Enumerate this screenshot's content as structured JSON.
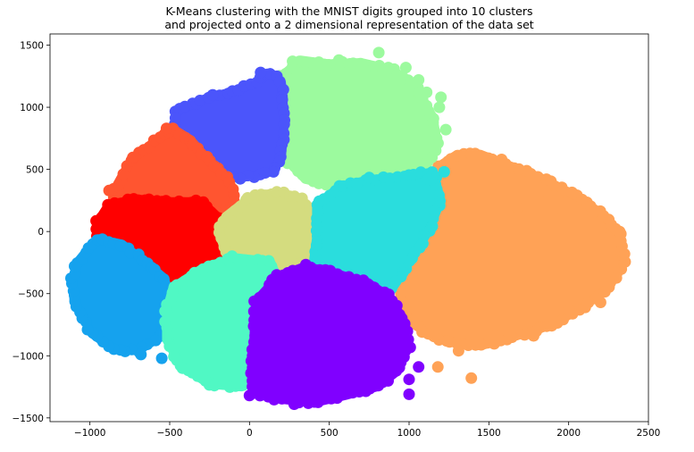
{
  "chart_data": {
    "type": "scatter",
    "title": "K-Means clustering with the MNIST digits grouped into 10 clusters\nand projected onto a 2 dimensional representation of the data set",
    "title_lines": [
      "K-Means clustering with the MNIST digits grouped into 10 clusters",
      "and projected onto a 2 dimensional representation of the data set"
    ],
    "xlabel": "",
    "ylabel": "",
    "xlim": [
      -1250,
      2500
    ],
    "ylim": [
      -1530,
      1590
    ],
    "xticks": [
      -1000,
      -500,
      0,
      500,
      1000,
      1500,
      2000,
      2500
    ],
    "yticks": [
      -1500,
      -1000,
      -500,
      0,
      500,
      1000,
      1500
    ],
    "xtick_labels": [
      "−1000",
      "−500",
      "0",
      "500",
      "1000",
      "1500",
      "2000",
      "2500"
    ],
    "ytick_labels": [
      "−1500",
      "−1000",
      "−500",
      "0",
      "500",
      "1000",
      "1500"
    ],
    "grid": false,
    "legend": "none",
    "clusters": [
      {
        "color": "#ffa256",
        "center": [
          1800,
          -250
        ],
        "polygon": [
          [
            1180,
            520
          ],
          [
            1300,
            620
          ],
          [
            1450,
            620
          ],
          [
            1650,
            520
          ],
          [
            1850,
            420
          ],
          [
            2050,
            280
          ],
          [
            2200,
            150
          ],
          [
            2320,
            -20
          ],
          [
            2350,
            -250
          ],
          [
            2250,
            -450
          ],
          [
            2100,
            -600
          ],
          [
            1900,
            -750
          ],
          [
            1650,
            -850
          ],
          [
            1450,
            -920
          ],
          [
            1300,
            -900
          ],
          [
            1150,
            -850
          ],
          [
            1000,
            -720
          ],
          [
            940,
            -500
          ],
          [
            960,
            -300
          ],
          [
            1050,
            -50
          ],
          [
            1100,
            250
          ]
        ],
        "outliers": [
          [
            1390,
            620
          ],
          [
            1580,
            580
          ],
          [
            1820,
            250
          ],
          [
            2150,
            150
          ],
          [
            2320,
            0
          ],
          [
            2350,
            -180
          ],
          [
            2200,
            -570
          ],
          [
            2000,
            -630
          ],
          [
            1780,
            -840
          ],
          [
            1540,
            -840
          ],
          [
            1310,
            -960
          ],
          [
            1180,
            -1090
          ],
          [
            1390,
            -1180
          ],
          [
            1680,
            190
          ],
          [
            1900,
            120
          ],
          [
            2250,
            -50
          ]
        ]
      },
      {
        "color": "#9cfa9e",
        "center": [
          620,
          900
        ],
        "polygon": [
          [
            200,
            1250
          ],
          [
            320,
            1380
          ],
          [
            500,
            1350
          ],
          [
            700,
            1360
          ],
          [
            900,
            1300
          ],
          [
            1050,
            1150
          ],
          [
            1150,
            920
          ],
          [
            1180,
            700
          ],
          [
            1100,
            500
          ],
          [
            950,
            380
          ],
          [
            750,
            350
          ],
          [
            550,
            360
          ],
          [
            350,
            420
          ],
          [
            200,
            620
          ],
          [
            150,
            900
          ]
        ],
        "outliers": [
          [
            810,
            1440
          ],
          [
            870,
            1320
          ],
          [
            980,
            1320
          ],
          [
            1010,
            1200
          ],
          [
            1110,
            1120
          ],
          [
            1200,
            1080
          ],
          [
            1230,
            820
          ],
          [
            560,
            1380
          ],
          [
            270,
            1370
          ],
          [
            1060,
            1220
          ],
          [
            1190,
            1000
          ]
        ]
      },
      {
        "color": "#4b55fb",
        "center": [
          -150,
          920
        ],
        "polygon": [
          [
            -460,
            960
          ],
          [
            -300,
            1060
          ],
          [
            -100,
            1130
          ],
          [
            50,
            1200
          ],
          [
            130,
            1280
          ],
          [
            200,
            1200
          ],
          [
            220,
            900
          ],
          [
            200,
            600
          ],
          [
            140,
            480
          ],
          [
            -60,
            430
          ],
          [
            -250,
            480
          ],
          [
            -400,
            620
          ],
          [
            -480,
            800
          ]
        ],
        "outliers": [
          [
            70,
            1280
          ],
          [
            -230,
            1100
          ]
        ]
      },
      {
        "color": "#ff5530",
        "center": [
          -530,
          450
        ],
        "polygon": [
          [
            -850,
            330
          ],
          [
            -750,
            560
          ],
          [
            -600,
            720
          ],
          [
            -470,
            820
          ],
          [
            -370,
            740
          ],
          [
            -250,
            560
          ],
          [
            -120,
            400
          ],
          [
            -80,
            200
          ],
          [
            -250,
            140
          ],
          [
            -480,
            160
          ],
          [
            -700,
            190
          ],
          [
            -850,
            230
          ]
        ],
        "outliers": [
          [
            -880,
            330
          ],
          [
            -520,
            830
          ]
        ]
      },
      {
        "color": "#ff0000",
        "center": [
          -560,
          0
        ],
        "polygon": [
          [
            -950,
            80
          ],
          [
            -880,
            220
          ],
          [
            -700,
            260
          ],
          [
            -480,
            240
          ],
          [
            -300,
            240
          ],
          [
            -200,
            120
          ],
          [
            -180,
            -150
          ],
          [
            -240,
            -300
          ],
          [
            -350,
            -370
          ],
          [
            -500,
            -380
          ],
          [
            -650,
            -300
          ],
          [
            -800,
            -180
          ],
          [
            -950,
            -50
          ]
        ],
        "outliers": [
          [
            -960,
            20
          ]
        ]
      },
      {
        "color": "#d4dc7f",
        "center": [
          150,
          10
        ],
        "polygon": [
          [
            -150,
            120
          ],
          [
            0,
            270
          ],
          [
            180,
            320
          ],
          [
            330,
            260
          ],
          [
            420,
            100
          ],
          [
            420,
            -100
          ],
          [
            330,
            -260
          ],
          [
            150,
            -320
          ],
          [
            0,
            -300
          ],
          [
            -150,
            -160
          ],
          [
            -190,
            -20
          ]
        ],
        "outliers": []
      },
      {
        "color": "#2adddd",
        "center": [
          820,
          100
        ],
        "polygon": [
          [
            420,
            200
          ],
          [
            560,
            360
          ],
          [
            760,
            420
          ],
          [
            960,
            440
          ],
          [
            1150,
            480
          ],
          [
            1200,
            250
          ],
          [
            1120,
            0
          ],
          [
            1000,
            -250
          ],
          [
            900,
            -450
          ],
          [
            800,
            -580
          ],
          [
            650,
            -520
          ],
          [
            500,
            -400
          ],
          [
            400,
            -250
          ],
          [
            420,
            -50
          ]
        ],
        "outliers": [
          [
            1220,
            480
          ],
          [
            1120,
            420
          ]
        ]
      },
      {
        "color": "#15a2ee",
        "center": [
          -880,
          -500
        ],
        "polygon": [
          [
            -1080,
            -250
          ],
          [
            -960,
            -60
          ],
          [
            -800,
            -100
          ],
          [
            -640,
            -260
          ],
          [
            -530,
            -380
          ],
          [
            -500,
            -600
          ],
          [
            -560,
            -850
          ],
          [
            -700,
            -960
          ],
          [
            -850,
            -950
          ],
          [
            -990,
            -820
          ],
          [
            -1100,
            -560
          ],
          [
            -1110,
            -380
          ]
        ],
        "outliers": [
          [
            -1090,
            -280
          ],
          [
            -550,
            -1020
          ],
          [
            -680,
            -990
          ]
        ]
      },
      {
        "color": "#50f8c4",
        "center": [
          -200,
          -720
        ],
        "polygon": [
          [
            -480,
            -450
          ],
          [
            -300,
            -300
          ],
          [
            -100,
            -210
          ],
          [
            130,
            -240
          ],
          [
            200,
            -440
          ],
          [
            180,
            -760
          ],
          [
            80,
            -1050
          ],
          [
            -50,
            -1250
          ],
          [
            -250,
            -1230
          ],
          [
            -430,
            -1080
          ],
          [
            -520,
            -870
          ],
          [
            -520,
            -640
          ]
        ],
        "outliers": [
          [
            -220,
            -1240
          ],
          [
            -420,
            -1100
          ],
          [
            120,
            -720
          ]
        ]
      },
      {
        "color": "#8000ff",
        "center": [
          520,
          -820
        ],
        "polygon": [
          [
            40,
            -560
          ],
          [
            180,
            -360
          ],
          [
            350,
            -280
          ],
          [
            550,
            -340
          ],
          [
            750,
            -420
          ],
          [
            870,
            -520
          ],
          [
            960,
            -700
          ],
          [
            1000,
            -920
          ],
          [
            920,
            -1130
          ],
          [
            800,
            -1250
          ],
          [
            600,
            -1320
          ],
          [
            400,
            -1380
          ],
          [
            200,
            -1350
          ],
          [
            20,
            -1300
          ],
          [
            20,
            -1050
          ],
          [
            30,
            -800
          ]
        ],
        "outliers": [
          [
            0,
            -1320
          ],
          [
            280,
            -1390
          ],
          [
            1000,
            -1310
          ],
          [
            1000,
            -1190
          ],
          [
            1060,
            -1090
          ],
          [
            480,
            -1310
          ]
        ]
      }
    ]
  }
}
